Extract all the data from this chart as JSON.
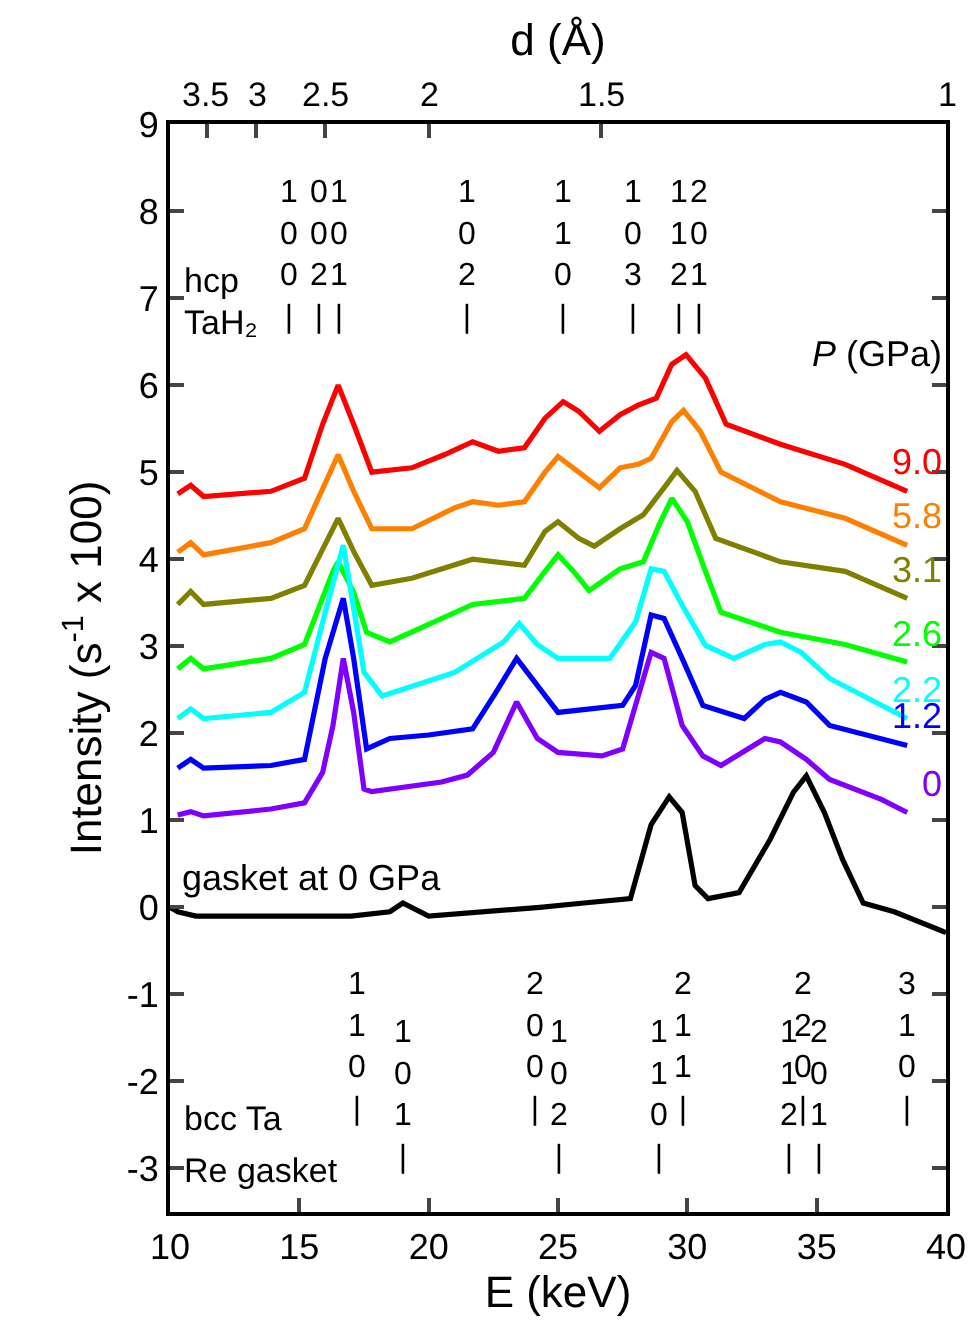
{
  "chart_data": {
    "type": "line",
    "xlabel": "E (keV)",
    "ylabel": "Intensity (s$^{-1}$ x 100)",
    "x2label": "d (Å)",
    "legend_title": "P (GPa)",
    "xlim": [
      10,
      40
    ],
    "xticks": [
      10,
      15,
      20,
      25,
      30,
      35,
      40
    ],
    "ylim": [
      -3.5,
      9
    ],
    "yticks": [
      -3,
      -2,
      -1,
      0,
      1,
      2,
      3,
      4,
      5,
      6,
      7,
      8,
      9
    ],
    "grid": false,
    "legend": false,
    "marker": "none",
    "line_style": "solid",
    "series": [
      {
        "name": "9.0",
        "color": "#ff0000",
        "x": [
          10.3,
          10.8,
          11.3,
          13.9,
          15.2,
          15.9,
          16.5,
          17.1,
          17.8,
          19.35,
          20.6,
          21.7,
          22.7,
          23.7,
          24.5,
          25.2,
          25.8,
          26.6,
          27.4,
          28.1,
          28.8,
          29.4,
          29.95,
          30.7,
          31.5,
          33.6,
          36.1,
          38.5
        ],
        "values": [
          4.75,
          4.85,
          4.72,
          4.78,
          4.93,
          5.55,
          6.0,
          5.55,
          5.0,
          5.05,
          5.2,
          5.35,
          5.24,
          5.28,
          5.62,
          5.81,
          5.7,
          5.47,
          5.66,
          5.77,
          5.85,
          6.24,
          6.35,
          6.08,
          5.55,
          5.32,
          5.09,
          4.78
        ]
      },
      {
        "name": "5.8",
        "color": "#ff8000",
        "x": [
          10.3,
          10.8,
          11.3,
          13.9,
          15.2,
          16.5,
          17.1,
          17.8,
          19.35,
          21.0,
          21.7,
          22.7,
          23.7,
          24.5,
          25.0,
          25.8,
          26.6,
          27.4,
          28.1,
          28.6,
          29.4,
          29.85,
          30.5,
          31.3,
          33.6,
          36.1,
          38.5
        ],
        "values": [
          4.08,
          4.19,
          4.05,
          4.19,
          4.35,
          5.2,
          4.78,
          4.35,
          4.35,
          4.59,
          4.66,
          4.62,
          4.66,
          5.0,
          5.18,
          5.0,
          4.82,
          5.05,
          5.09,
          5.16,
          5.58,
          5.71,
          5.47,
          5.0,
          4.66,
          4.47,
          4.16
        ]
      },
      {
        "name": "3.1",
        "color": "#808000",
        "x": [
          10.3,
          10.8,
          11.3,
          13.9,
          15.2,
          16.5,
          17.1,
          17.8,
          19.35,
          21.7,
          23.7,
          24.5,
          25.0,
          25.8,
          26.4,
          27.4,
          28.3,
          29.2,
          29.6,
          30.3,
          31.1,
          33.6,
          36.1,
          38.5
        ],
        "values": [
          3.48,
          3.63,
          3.48,
          3.55,
          3.7,
          4.47,
          4.09,
          3.7,
          3.78,
          4.0,
          3.93,
          4.32,
          4.43,
          4.24,
          4.15,
          4.35,
          4.51,
          4.86,
          5.02,
          4.78,
          4.24,
          3.97,
          3.86,
          3.55
        ]
      },
      {
        "name": "2.6",
        "color": "#00ff00",
        "x": [
          10.3,
          10.8,
          11.3,
          13.9,
          15.2,
          16.3,
          16.5,
          17.1,
          17.6,
          18.5,
          21.7,
          23.7,
          24.5,
          25.0,
          25.6,
          26.2,
          27.4,
          28.3,
          28.9,
          29.4,
          30.0,
          30.7,
          31.3,
          33.6,
          36.1,
          38.5
        ],
        "values": [
          2.74,
          2.86,
          2.74,
          2.86,
          3.02,
          3.86,
          3.97,
          3.62,
          3.16,
          3.05,
          3.48,
          3.55,
          3.86,
          4.05,
          3.86,
          3.64,
          3.89,
          3.97,
          4.39,
          4.7,
          4.43,
          3.86,
          3.39,
          3.16,
          3.02,
          2.82
        ]
      },
      {
        "name": "2.2",
        "color": "#00ffff",
        "x": [
          10.3,
          10.8,
          11.3,
          13.9,
          15.2,
          16.0,
          16.7,
          17.0,
          17.5,
          18.2,
          21.0,
          22.9,
          23.5,
          24.2,
          25.0,
          27.0,
          28.0,
          28.6,
          29.1,
          29.8,
          30.7,
          31.8,
          33.0,
          33.6,
          34.4,
          35.5,
          38.5
        ],
        "values": [
          2.17,
          2.28,
          2.17,
          2.24,
          2.47,
          3.39,
          4.16,
          3.62,
          2.7,
          2.43,
          2.7,
          3.05,
          3.26,
          3.02,
          2.86,
          2.86,
          3.28,
          3.89,
          3.86,
          3.47,
          3.01,
          2.86,
          3.02,
          3.05,
          2.93,
          2.63,
          2.17
        ]
      },
      {
        "name": "1.2",
        "color": "#0000ff",
        "x": [
          10.3,
          10.8,
          11.3,
          13.9,
          15.2,
          16.0,
          16.7,
          17.1,
          17.6,
          18.5,
          20.0,
          21.7,
          22.6,
          23.4,
          24.2,
          25.0,
          27.5,
          28.0,
          28.6,
          29.1,
          29.8,
          30.6,
          32.2,
          33.0,
          33.6,
          34.6,
          35.5,
          38.5
        ],
        "values": [
          1.6,
          1.7,
          1.6,
          1.63,
          1.7,
          2.86,
          3.55,
          2.86,
          1.82,
          1.94,
          1.98,
          2.05,
          2.47,
          2.86,
          2.55,
          2.24,
          2.32,
          2.55,
          3.36,
          3.32,
          2.86,
          2.32,
          2.17,
          2.39,
          2.47,
          2.36,
          2.09,
          1.86
        ]
      },
      {
        "name": "0",
        "color": "#8000ff",
        "x": [
          10.3,
          10.8,
          11.3,
          13.9,
          15.2,
          15.9,
          16.3,
          16.7,
          17.1,
          17.5,
          17.8,
          20.5,
          21.5,
          22.5,
          23.4,
          24.2,
          25.0,
          26.7,
          27.5,
          28.6,
          29.1,
          29.8,
          30.6,
          31.3,
          33.0,
          33.6,
          34.6,
          35.5,
          37.5,
          38.5
        ],
        "values": [
          1.06,
          1.1,
          1.05,
          1.13,
          1.2,
          1.55,
          2.09,
          2.86,
          2.24,
          1.36,
          1.33,
          1.44,
          1.52,
          1.78,
          2.36,
          1.94,
          1.78,
          1.74,
          1.82,
          2.93,
          2.86,
          2.09,
          1.74,
          1.63,
          1.94,
          1.9,
          1.7,
          1.47,
          1.24,
          1.09
        ]
      },
      {
        "name": "gasket at 0 GPa",
        "color": "#000000",
        "x": [
          10.0,
          10.3,
          11.0,
          17.0,
          18.5,
          19.0,
          20.0,
          24.3,
          26.0,
          27.8,
          28.6,
          29.3,
          29.8,
          30.3,
          30.8,
          32.0,
          33.2,
          34.1,
          34.6,
          35.3,
          36.0,
          36.8,
          38.0,
          40.0
        ],
        "values": [
          0.0,
          -0.05,
          -0.1,
          -0.1,
          -0.05,
          0.05,
          -0.1,
          0.0,
          0.05,
          0.1,
          0.95,
          1.27,
          1.09,
          0.25,
          0.1,
          0.17,
          0.78,
          1.32,
          1.51,
          1.09,
          0.55,
          0.05,
          -0.05,
          -0.29
        ]
      }
    ],
    "annotations": [
      "hcp",
      "TaH₂",
      "bcc Ta",
      "Re gasket",
      "3.5",
      "3",
      "2.5",
      "2",
      "1.5",
      "1",
      "1\n0\n0\n|",
      "0\n0\n2\n|",
      "1\n0\n1\n|",
      "1\n0\n2\n|",
      "1\n1\n0\n|",
      "1\n0\n3\n|",
      "1\n1\n2\n|",
      "2\n0\n1\n|",
      "1\n1\n0\n|",
      "2\n0\n0\n|",
      "2\n1\n1\n|",
      "2\n2\n0\n|",
      "3\n1\n0\n|",
      "1\n0\n1\n|",
      "1\n0\n2\n|",
      "1\n1\n0\n|",
      "1\n1\n2\n|",
      "2\n0\n1\n|"
    ]
  }
}
